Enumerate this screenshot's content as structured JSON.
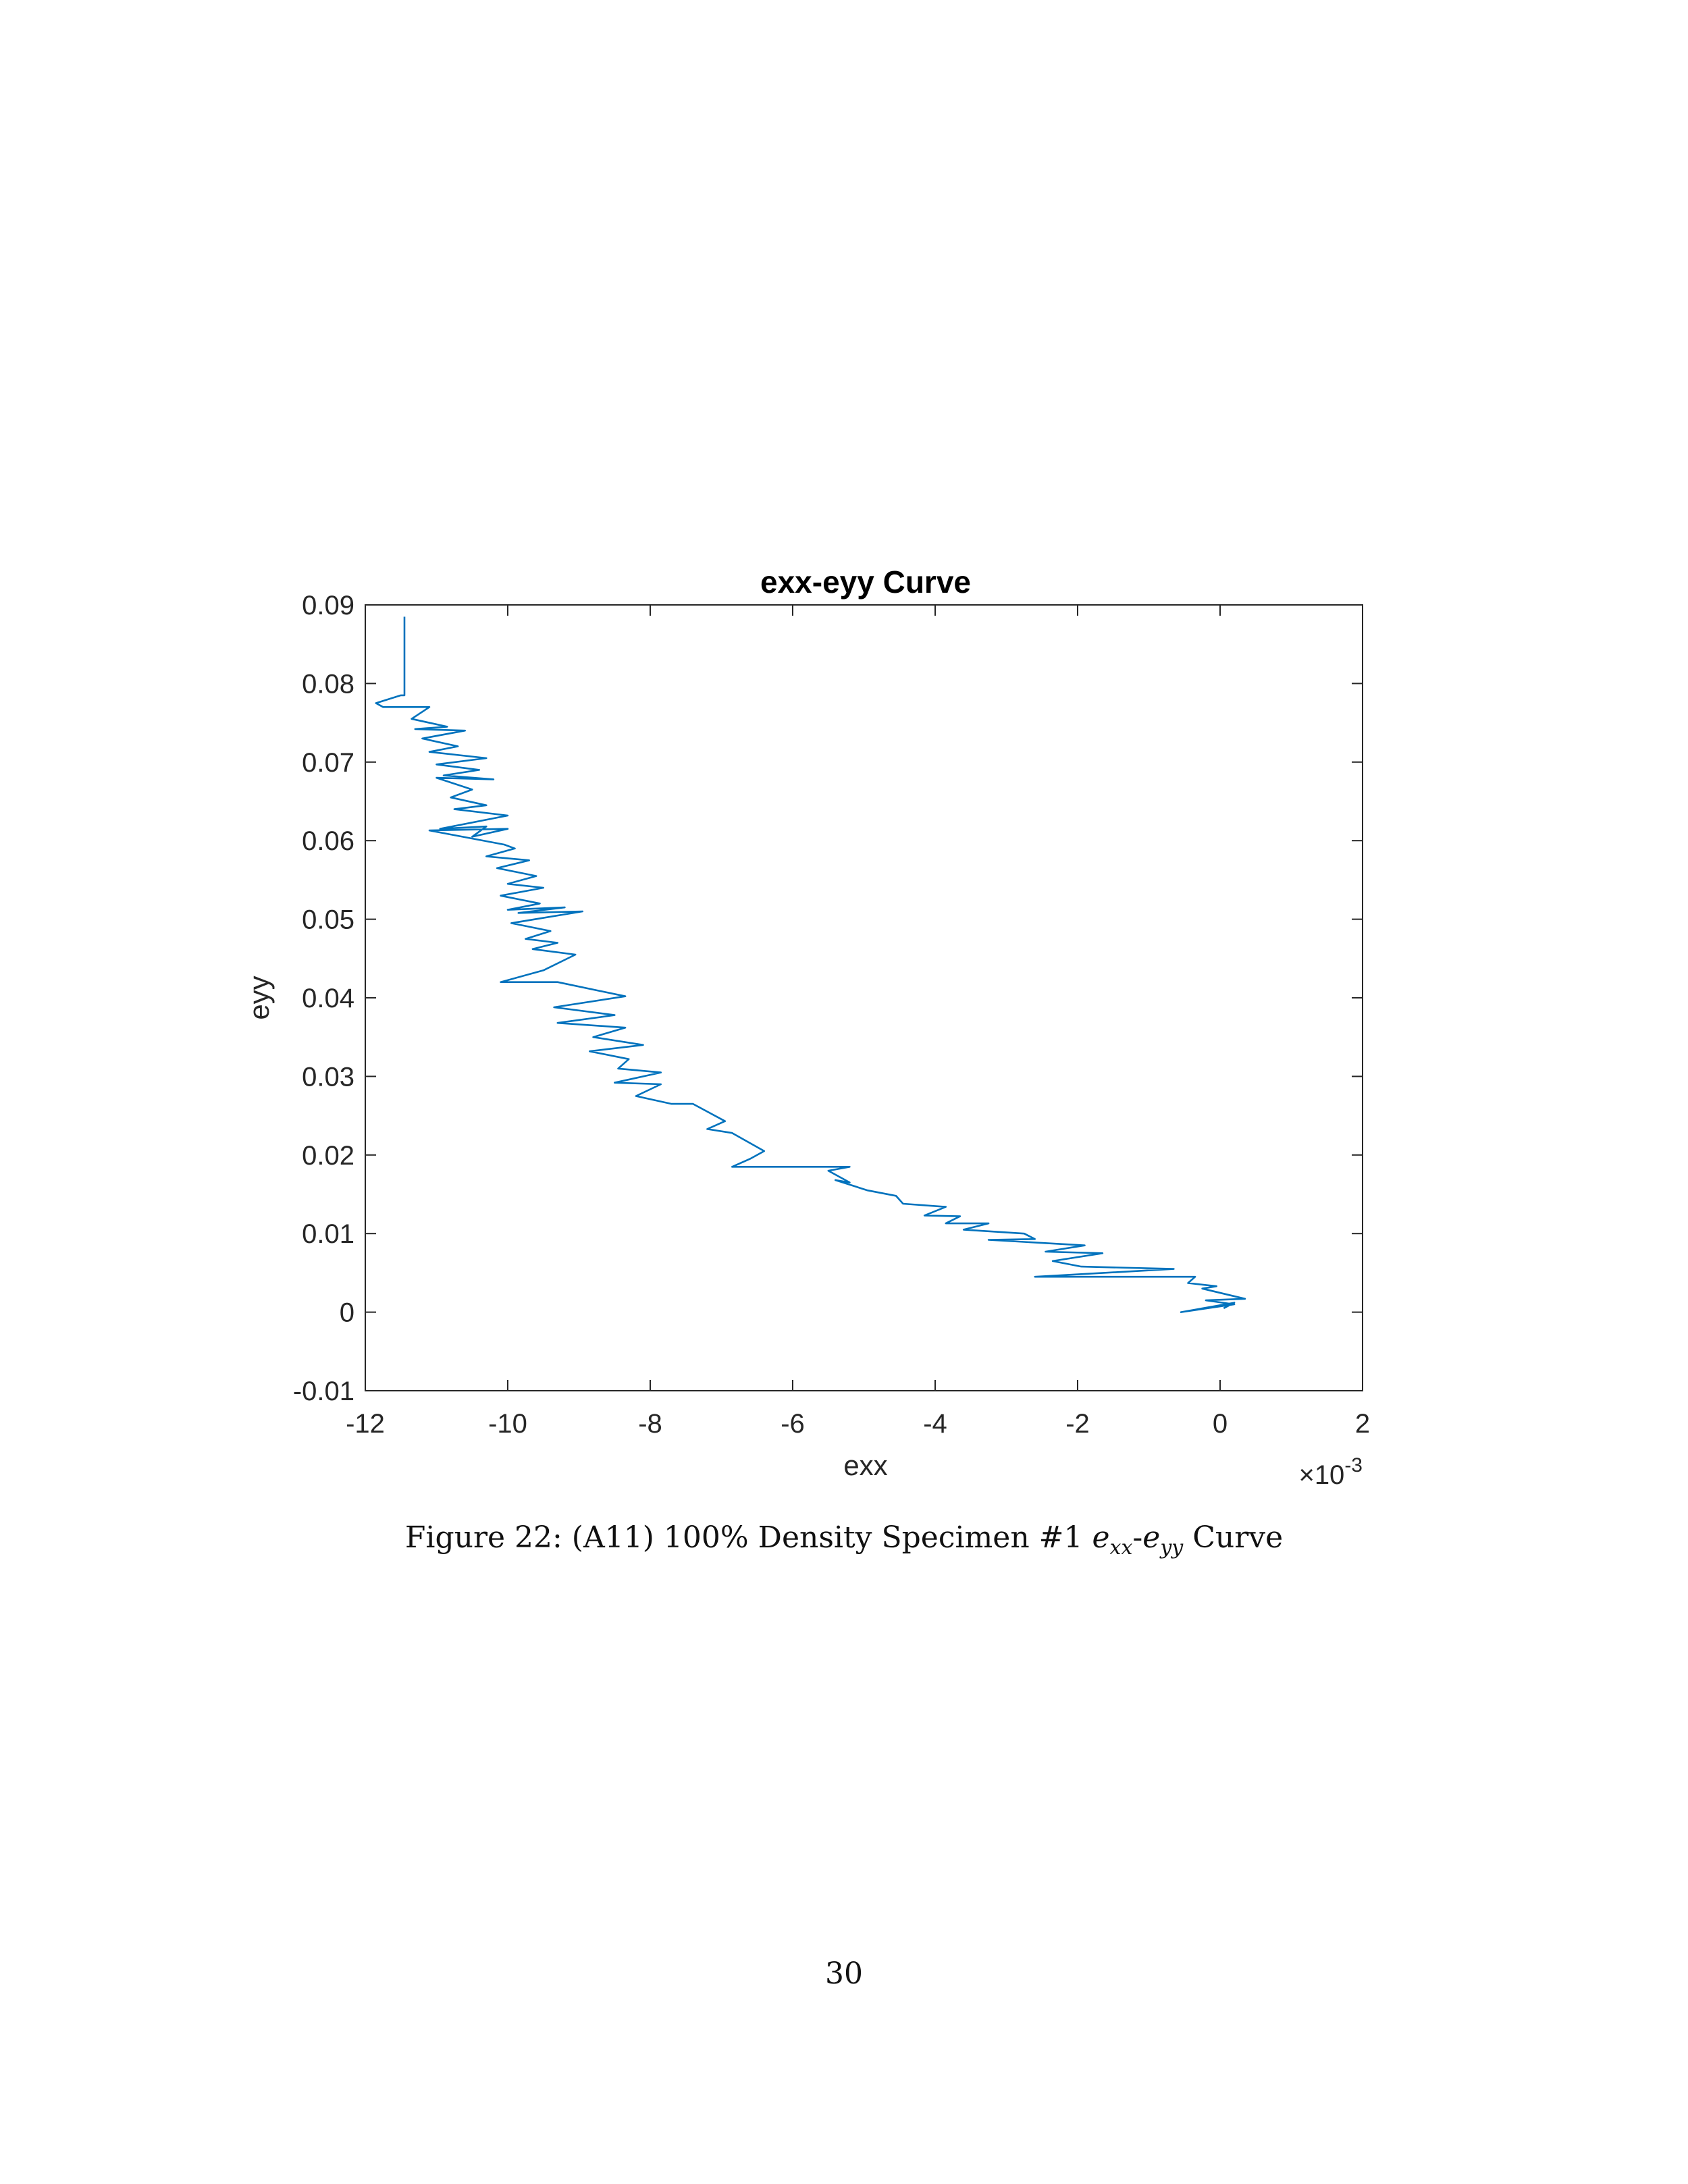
{
  "chart_data": {
    "type": "line",
    "title": "exx-eyy Curve",
    "xlabel": "exx",
    "ylabel": "eyy",
    "x_multiplier": "×10",
    "x_multiplier_exponent": "-3",
    "xlim": [
      -12,
      2
    ],
    "ylim": [
      -0.01,
      0.09
    ],
    "x_ticks": [
      -12,
      -10,
      -8,
      -6,
      -4,
      -2,
      0,
      2
    ],
    "y_ticks": [
      -0.01,
      0,
      0.01,
      0.02,
      0.03,
      0.04,
      0.05,
      0.06,
      0.07,
      0.08,
      0.09
    ],
    "x_tick_labels": [
      "-12",
      "-10",
      "-8",
      "-6",
      "-4",
      "-2",
      "0",
      "2"
    ],
    "y_tick_labels": [
      "-0.01",
      "0",
      "0.01",
      "0.02",
      "0.03",
      "0.04",
      "0.05",
      "0.06",
      "0.07",
      "0.08",
      "0.09"
    ],
    "grid": false,
    "line_color": "#0072BD",
    "series": [
      {
        "x": [
          -11.45,
          -11.45,
          -11.5,
          -11.85,
          -11.75,
          -11.1,
          -11.35,
          -10.85,
          -11.3,
          -10.6,
          -11.2,
          -10.7,
          -11.1,
          -10.3,
          -11.0,
          -10.4,
          -10.9,
          -10.2,
          -11.0,
          -10.5,
          -10.8,
          -10.3,
          -10.75,
          -10.0,
          -10.95,
          -10.3,
          -10.5,
          -10.0,
          -11.1,
          -10.05,
          -9.9,
          -10.3,
          -9.7,
          -10.15,
          -9.6,
          -10.0,
          -9.5,
          -10.1,
          -9.55,
          -10.0,
          -9.2,
          -9.85,
          -8.95,
          -9.95,
          -9.4,
          -9.75,
          -9.3,
          -9.65,
          -9.05,
          -9.5,
          -10.1,
          -9.3,
          -8.35,
          -9.35,
          -8.5,
          -9.3,
          -8.35,
          -8.8,
          -8.1,
          -8.85,
          -8.3,
          -8.45,
          -7.85,
          -8.5,
          -7.85,
          -8.2,
          -7.7,
          -7.4,
          -6.95,
          -7.2,
          -6.85,
          -6.4,
          -6.6,
          -6.85,
          -5.2,
          -5.5,
          -5.2,
          -5.4,
          -4.95,
          -4.55,
          -4.45,
          -3.85,
          -4.15,
          -3.65,
          -3.85,
          -3.25,
          -3.6,
          -2.75,
          -2.6,
          -3.25,
          -1.9,
          -2.45,
          -1.65,
          -2.35,
          -1.95,
          -0.65,
          -2.6,
          -0.35,
          -0.45,
          -0.05,
          -0.25,
          0.35,
          -0.2,
          0.2,
          -0.55,
          0.2,
          0.05
        ],
        "y": [
          0.0885,
          0.0785,
          0.0785,
          0.0775,
          0.077,
          0.077,
          0.0755,
          0.0745,
          0.0742,
          0.074,
          0.073,
          0.072,
          0.0713,
          0.0705,
          0.0697,
          0.069,
          0.0683,
          0.0678,
          0.068,
          0.0665,
          0.0655,
          0.0645,
          0.064,
          0.0632,
          0.0615,
          0.0618,
          0.0605,
          0.0615,
          0.0613,
          0.0595,
          0.059,
          0.058,
          0.0575,
          0.0565,
          0.0555,
          0.0545,
          0.054,
          0.053,
          0.052,
          0.0512,
          0.0515,
          0.0508,
          0.051,
          0.0495,
          0.0485,
          0.0475,
          0.047,
          0.0462,
          0.0455,
          0.0435,
          0.042,
          0.042,
          0.0402,
          0.0388,
          0.0378,
          0.0368,
          0.0362,
          0.035,
          0.034,
          0.0332,
          0.0322,
          0.031,
          0.0305,
          0.0292,
          0.029,
          0.0275,
          0.0265,
          0.0265,
          0.0243,
          0.0233,
          0.0228,
          0.0205,
          0.0195,
          0.0185,
          0.0185,
          0.018,
          0.0165,
          0.0168,
          0.0155,
          0.0148,
          0.0138,
          0.0134,
          0.0123,
          0.0122,
          0.0113,
          0.0113,
          0.0105,
          0.01,
          0.0093,
          0.0092,
          0.0085,
          0.0077,
          0.0075,
          0.0065,
          0.0058,
          0.0055,
          0.0045,
          0.0045,
          0.0037,
          0.0033,
          0.003,
          0.0017,
          0.0015,
          0.001,
          0.0,
          0.0012,
          0.0005
        ]
      }
    ]
  },
  "caption": {
    "prefix": "Figure 22: (A11) 100% Density Specimen #1 ",
    "var1": "e",
    "var1_sub": "xx",
    "separator": "-",
    "var2": "e",
    "var2_sub": "yy",
    "suffix": " Curve"
  },
  "page_number": "30"
}
